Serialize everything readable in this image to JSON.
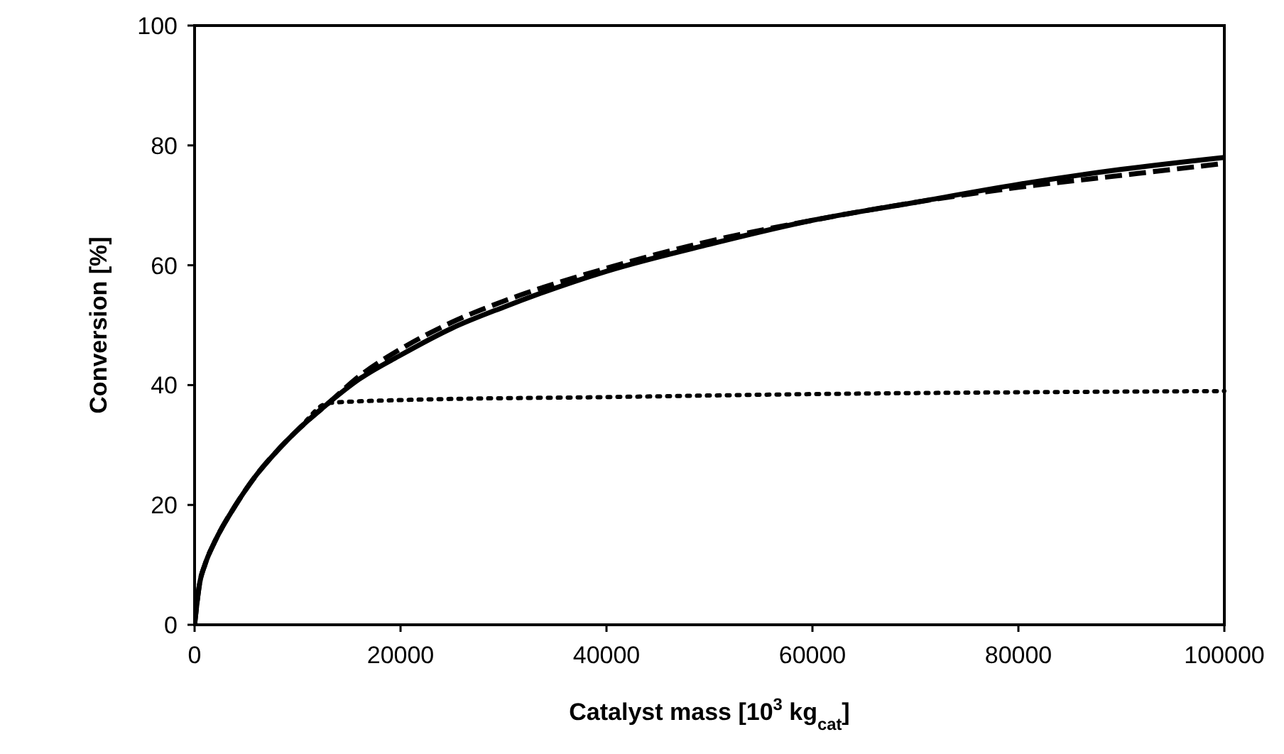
{
  "chart_data": {
    "type": "line",
    "xlabel": "Catalyst mass [10$^{3}$ kg$_{cat}$]",
    "ylabel": "Conversion [%]",
    "xlim": [
      0,
      100000
    ],
    "xticks": [
      0,
      20000,
      40000,
      60000,
      80000,
      100000
    ],
    "ylim": [
      0,
      100
    ],
    "yticks": [
      0,
      20,
      40,
      60,
      80,
      100
    ],
    "grid": false,
    "marker": "none",
    "series": [
      {
        "color": "#000000",
        "line_style": "solid",
        "x": [
          0,
          500,
          1000,
          2000,
          4000,
          6000,
          8000,
          10000,
          13000,
          16000,
          20000,
          25000,
          30000,
          40000,
          50000,
          60000,
          70000,
          80000,
          90000,
          100000
        ],
        "values": [
          0,
          7,
          10,
          14,
          20,
          25,
          29,
          32.5,
          37,
          41,
          45,
          49.5,
          53,
          59,
          63.5,
          67.5,
          70.5,
          73.5,
          76,
          78
        ]
      },
      {
        "color": "#000000",
        "line_style": "dashed",
        "x": [
          0,
          500,
          1000,
          2000,
          4000,
          6000,
          8000,
          10000,
          13000,
          16000,
          20000,
          25000,
          30000,
          40000,
          50000,
          60000,
          70000,
          80000,
          90000,
          100000
        ],
        "values": [
          0,
          7,
          10,
          14,
          20,
          25,
          29,
          32.5,
          37,
          41.5,
          46,
          50.5,
          54,
          59.5,
          64,
          67.5,
          70.5,
          73,
          75,
          77
        ]
      },
      {
        "color": "#000000",
        "line_style": "dotted",
        "x": [
          0,
          500,
          1000,
          2000,
          4000,
          6000,
          8000,
          10000,
          13000,
          20000,
          40000,
          60000,
          80000,
          100000
        ],
        "values": [
          0,
          7,
          10,
          14,
          20,
          25,
          29,
          32.5,
          37,
          37.5,
          38,
          38.5,
          38.8,
          39
        ]
      }
    ]
  }
}
